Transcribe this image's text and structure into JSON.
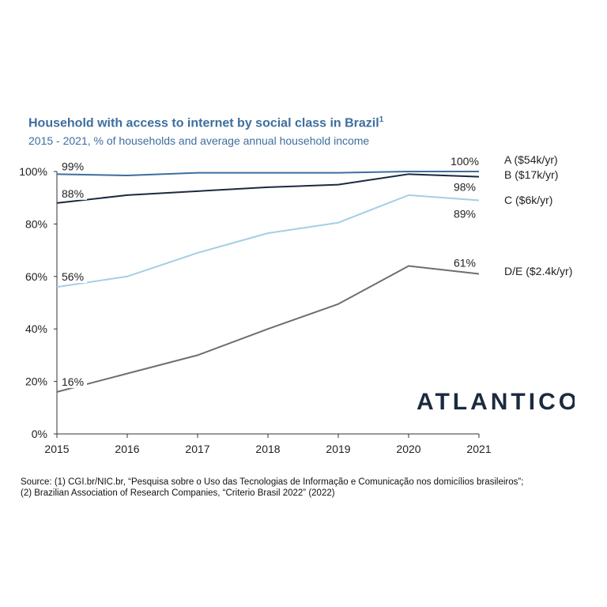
{
  "title": "Household with access to internet by social class in Brazil",
  "title_sup": "1",
  "subtitle": "2015 - 2021, % of households and average annual household income",
  "logo_text": "ATLANTICO",
  "source": [
    "Source: (1) CGI.br/NIC.br, “Pesquisa sobre o Uso das Tecnologias de Informação e Comunicação nos domicílios brasileiros”;",
    "(2) Brazilian Association of Research Companies, “Criterio Brasil 2022” (2022)"
  ],
  "chart_data": {
    "type": "line",
    "x": [
      2015,
      2016,
      2017,
      2018,
      2019,
      2020,
      2021
    ],
    "x_tick_labels": [
      "2015",
      "2016",
      "2017",
      "2018",
      "2019",
      "2020",
      "2021"
    ],
    "ylim": [
      0,
      100
    ],
    "y_ticks": [
      0,
      20,
      40,
      60,
      80,
      100
    ],
    "y_tick_labels": [
      "0%",
      "20%",
      "40%",
      "60%",
      "80%",
      "100%"
    ],
    "grid": false,
    "legend": "right end labels",
    "series": [
      {
        "name": "A ($54k/yr)",
        "color": "#3d6e9e",
        "values": [
          99,
          98.5,
          99.5,
          99.5,
          99.5,
          100,
          100
        ],
        "start_label": "99%",
        "end_label": "100%"
      },
      {
        "name": "B ($17k/yr)",
        "color": "#1c2a3e",
        "values": [
          88,
          91,
          92.5,
          94,
          95,
          99,
          98
        ],
        "start_label": "88%",
        "end_label": "98%"
      },
      {
        "name": "C ($6k/yr)",
        "color": "#a3cfe3",
        "values": [
          56,
          60,
          69,
          76.5,
          80.5,
          91,
          89
        ],
        "start_label": "56%",
        "end_label": "89%"
      },
      {
        "name": "D/E ($2.4k/yr)",
        "color": "#6e6e6e",
        "values": [
          16,
          23,
          30,
          40,
          49.5,
          64,
          61
        ],
        "start_label": "16%",
        "end_label": "61%"
      }
    ]
  }
}
